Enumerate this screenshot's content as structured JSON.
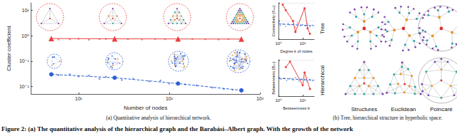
{
  "caption": "Figure 2: (a) The quantitative analysis of the hierarchical graph and the Barabási–Albert graph. With the growth of the network",
  "subcaptions": [
    "(a) Quantitative analysis of hierarchical network.",
    "(b) Tree, hierarchical structure in hyperbolic space."
  ],
  "chart_data": [
    {
      "type": "line",
      "x_label": "Number of nodes",
      "y_label": "Cluster coefficient",
      "log": true,
      "grid": false,
      "xlim": [
        3,
        1000
      ],
      "xticks": [
        {
          "value": 10,
          "label": "10¹"
        },
        {
          "value": 100,
          "label": "10²"
        },
        {
          "value": 1000,
          "label": "10³"
        }
      ],
      "ylim": [
        0.005,
        20
      ],
      "yticks": [
        {
          "value": 0.01,
          "label": "10⁻²"
        },
        {
          "value": 0.1,
          "label": "10⁻¹"
        },
        {
          "value": 1,
          "label": "10⁰"
        },
        {
          "value": 10,
          "label": "10¹"
        }
      ],
      "series": [
        {
          "color": "#e8403f",
          "marker": "triangle",
          "line_style": "solid",
          "x": [
            5,
            25,
            125,
            625
          ],
          "values": [
            0.78,
            0.76,
            0.75,
            0.74
          ]
        },
        {
          "type": "scatter",
          "color": "#f07070",
          "marker": "circle",
          "x": [
            6,
            8,
            10,
            13,
            17,
            20,
            35,
            50,
            70,
            90,
            180,
            250,
            350,
            450
          ],
          "values": [
            0.72,
            0.73,
            0.76,
            0.7,
            0.74,
            0.75,
            0.73,
            0.72,
            0.74,
            0.73,
            0.74,
            0.73,
            0.72,
            0.74
          ]
        },
        {
          "color": "#2f5fd0",
          "marker": "circle",
          "line_style": "dashed",
          "x": [
            5,
            25,
            125,
            625
          ],
          "values": [
            0.03,
            0.022,
            0.013,
            0.007
          ]
        },
        {
          "type": "scatter",
          "color": "#5b7fe0",
          "marker": "circle",
          "x": [
            6,
            8,
            10,
            13,
            17,
            20,
            30,
            40,
            60,
            80,
            100,
            150,
            200,
            300,
            400,
            500
          ],
          "values": [
            0.028,
            0.03,
            0.025,
            0.027,
            0.02,
            0.024,
            0.018,
            0.02,
            0.016,
            0.017,
            0.013,
            0.012,
            0.011,
            0.009,
            0.008,
            0.0075
          ]
        }
      ]
    },
    {
      "type": "line",
      "x_label": "Degree k of nodes",
      "y_label": "Connectivity (Kₙₙ)",
      "log": "x",
      "grid": true,
      "tick_labels": "x",
      "xlim": [
        1,
        30
      ],
      "xticks": [
        {
          "value": 1,
          "label": "10⁰"
        },
        {
          "value": 10,
          "label": "10¹"
        }
      ],
      "ylim": [
        0,
        10
      ],
      "yticks": [
        0,
        5,
        10
      ],
      "series": [
        {
          "color": "#e8403f",
          "marker": "circle",
          "line_style": "solid",
          "x": [
            1.5,
            2,
            4,
            5,
            12,
            16,
            20
          ],
          "values": [
            9.5,
            8,
            5,
            2,
            8.5,
            3,
            1.5
          ]
        },
        {
          "type": "scatter",
          "color": "#2f5fd0",
          "marker": "circle",
          "x": [
            1,
            1.2,
            1.5,
            2,
            2.5,
            3,
            4,
            5,
            6,
            8,
            10,
            13,
            16,
            20,
            25
          ],
          "values": [
            4.6,
            3.8,
            4.2,
            3.5,
            4.4,
            3.9,
            4.1,
            3.3,
            4.5,
            3.7,
            4.0,
            3.6,
            4.2,
            3.4,
            3.9
          ]
        },
        {
          "color": "#2f5fd0",
          "marker": "none",
          "line_style": "dashed",
          "x": [
            1,
            30
          ],
          "values": [
            4.2,
            3.7
          ]
        }
      ]
    },
    {
      "type": "line",
      "x_label": "Betweenness b",
      "y_label": "Betweenness (Bₙₙ)",
      "log": "x",
      "grid": true,
      "tick_labels": "x",
      "xlim": [
        1,
        30
      ],
      "xticks": [
        {
          "value": 1,
          "label": "10⁰"
        },
        {
          "value": 10,
          "label": "10¹"
        }
      ],
      "ylim": [
        0,
        10
      ],
      "yticks": [
        0,
        5,
        10
      ],
      "series": [
        {
          "color": "#e8403f",
          "marker": "circle",
          "line_style": "solid",
          "x": [
            2,
            3,
            10,
            12,
            20
          ],
          "values": [
            8,
            9.5,
            3,
            6.5,
            2
          ]
        },
        {
          "type": "scatter",
          "color": "#2f5fd0",
          "marker": "circle",
          "x": [
            1,
            1.3,
            1.7,
            2.2,
            3,
            4,
            5,
            7,
            9,
            12,
            15,
            20,
            26
          ],
          "values": [
            5.2,
            4.6,
            5.0,
            4.3,
            4.8,
            4.4,
            5.1,
            4.2,
            4.7,
            4.5,
            4.1,
            4.6,
            4.3
          ]
        },
        {
          "color": "#2f5fd0",
          "marker": "none",
          "line_style": "dashed",
          "x": [
            1,
            30
          ],
          "values": [
            4.9,
            4.4
          ]
        }
      ]
    }
  ],
  "panel_b": {
    "rows": [
      "Tree",
      "Hierarchical"
    ],
    "columns": [
      "Structures",
      "Euclidean",
      "Poincaré"
    ]
  }
}
